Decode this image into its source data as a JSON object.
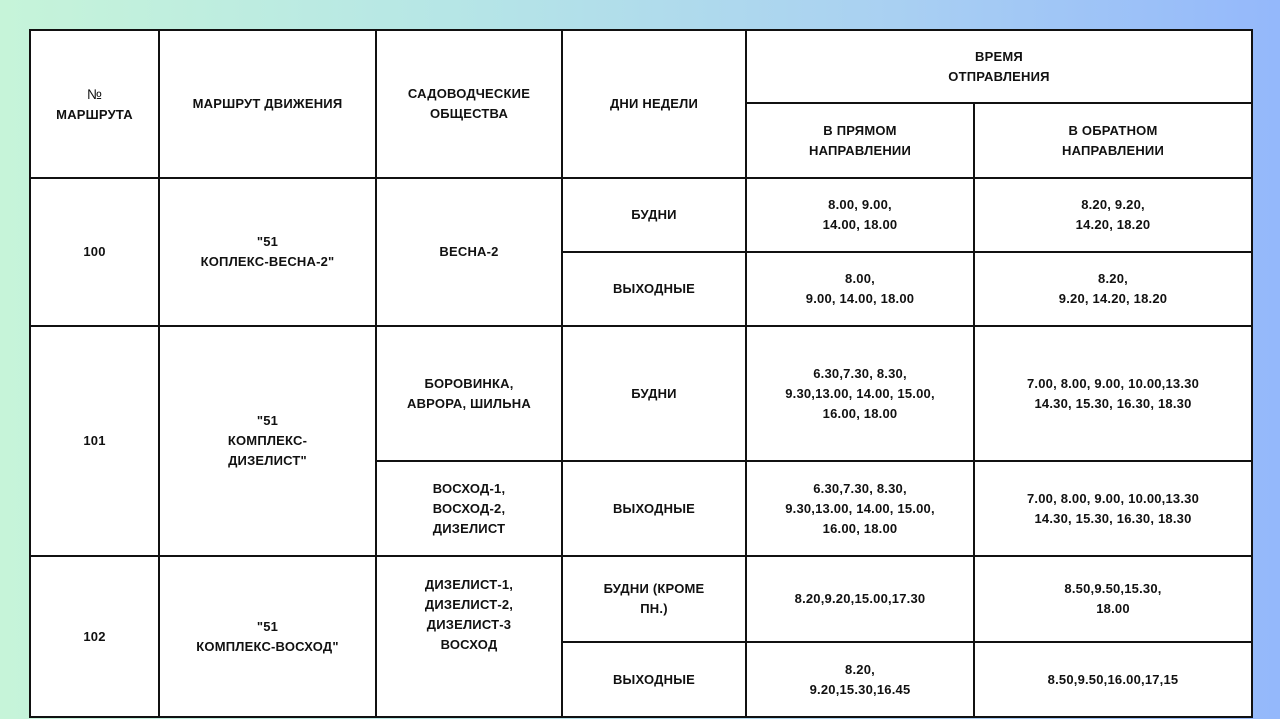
{
  "header": {
    "route_no_sign": "№",
    "route_no": "МАРШРУТА",
    "route_path": "МАРШРУТ ДВИЖЕНИЯ",
    "societies": "САДОВОДЧЕСКИЕ\nОБЩЕСТВА",
    "weekdays": "ДНИ НЕДЕЛИ",
    "departure_time": "ВРЕМЯ\nОТПРАВЛЕНИЯ",
    "forward": "В ПРЯМОМ\nНАПРАВЛЕНИИ",
    "backward": "В ОБРАТНОМ\nНАПРАВЛЕНИИ"
  },
  "routes": [
    {
      "number": "100",
      "path": "\"51\nКОПЛЕКС-ВЕСНА-2\"",
      "societies": "ВЕСНА-2",
      "schedule": [
        {
          "days": "БУДНИ",
          "forward": "8.00, 9.00,\n14.00, 18.00",
          "backward": "8.20, 9.20,\n14.20, 18.20"
        },
        {
          "days": "ВЫХОДНЫЕ",
          "forward": "8.00,\n9.00, 14.00, 18.00",
          "backward": "8.20,\n9.20, 14.20, 18.20"
        }
      ]
    },
    {
      "number": "101",
      "path": "\"51\nКОМПЛЕКС-\nДИЗЕЛИСТ\"",
      "schedule": [
        {
          "societies": "БОРОВИНКА,\nАВРОРА, ШИЛЬНА",
          "days": "БУДНИ",
          "forward": "6.30,7.30, 8.30,\n9.30,13.00, 14.00, 15.00,\n16.00, 18.00",
          "backward": "7.00, 8.00, 9.00, 10.00,13.30\n14.30, 15.30, 16.30, 18.30"
        },
        {
          "societies": "ВОСХОД-1,\nВОСХОД-2,\nДИЗЕЛИСТ",
          "days": "ВЫХОДНЫЕ",
          "forward": "6.30,7.30, 8.30,\n9.30,13.00, 14.00, 15.00,\n16.00, 18.00",
          "backward": "7.00, 8.00, 9.00, 10.00,13.30\n14.30, 15.30, 16.30, 18.30"
        }
      ]
    },
    {
      "number": "102",
      "path": "\"51\nКОМПЛЕКС-ВОСХОД\"",
      "societies": "ДИЗЕЛИСТ-1,\nДИЗЕЛИСТ-2,\nДИЗЕЛИСТ-3\nВОСХОД",
      "schedule": [
        {
          "days": "БУДНИ (КРОМЕ\nПН.)",
          "forward": "8.20,9.20,15.00,17.30",
          "backward": "8.50,9.50,15.30,\n18.00"
        },
        {
          "days": "ВЫХОДНЫЕ",
          "forward": "8.20,\n9.20,15.30,16.45",
          "backward": "8.50,9.50,16.00,17,15"
        }
      ]
    }
  ]
}
